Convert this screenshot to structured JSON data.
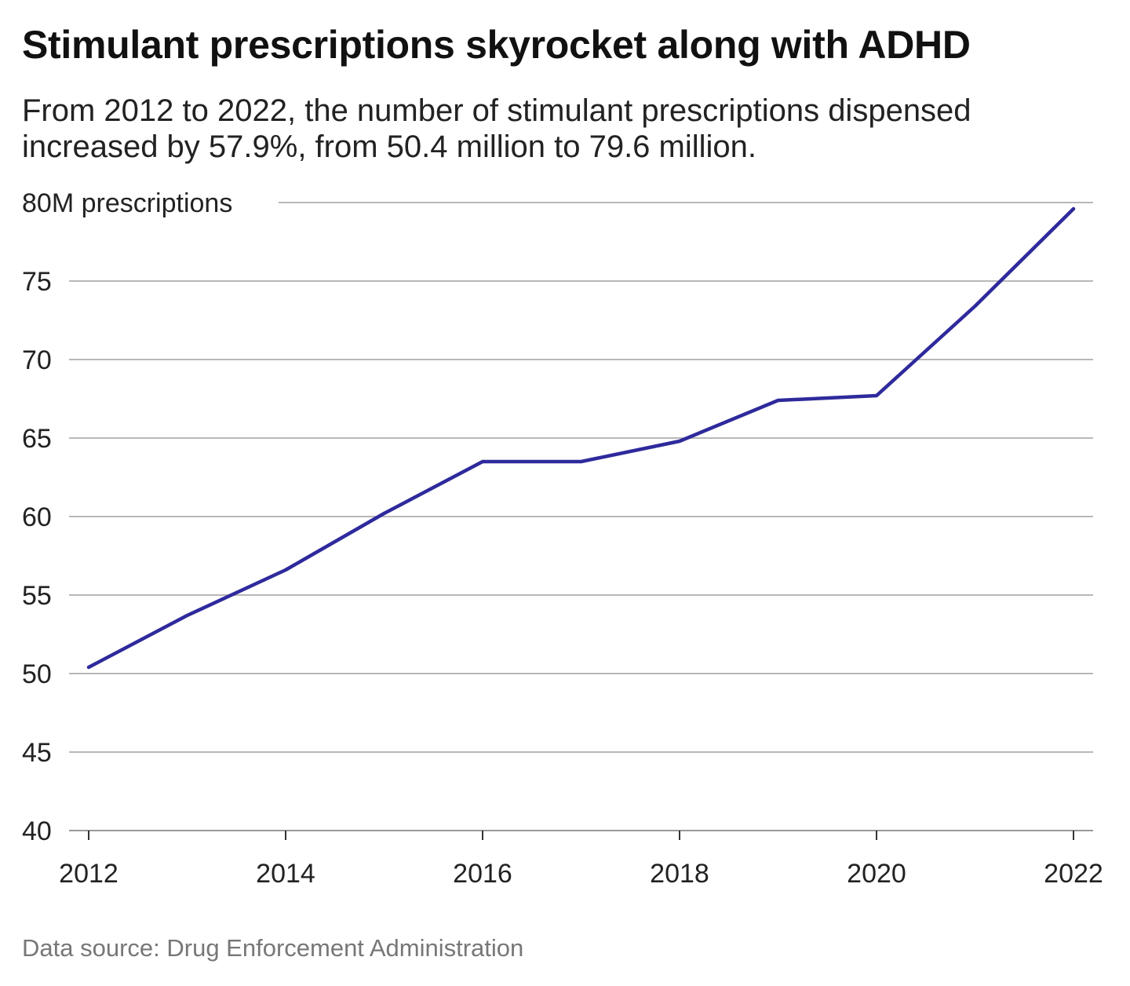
{
  "title": "Stimulant prescriptions skyrocket along with ADHD",
  "subtitle": "From 2012 to 2022, the number of stimulant prescriptions dispensed increased by 57.9%, from 50.4 million to 79.6 million.",
  "source": "Data source: Drug Enforcement Administration",
  "chart_data": {
    "type": "line",
    "title": "Stimulant prescriptions skyrocket along with ADHD",
    "ylabel": "",
    "xlabel": "",
    "ylim": [
      40,
      80
    ],
    "yticks": [
      40,
      45,
      50,
      55,
      60,
      65,
      70,
      75,
      80
    ],
    "ytick_labels": [
      "40",
      "45",
      "50",
      "55",
      "60",
      "65",
      "70",
      "75",
      "80M prescriptions"
    ],
    "xticks": [
      2012,
      2014,
      2016,
      2018,
      2020,
      2022
    ],
    "xtick_labels": [
      "2012",
      "2014",
      "2016",
      "2018",
      "2020",
      "2022"
    ],
    "x": [
      2012,
      2013,
      2014,
      2015,
      2016,
      2017,
      2018,
      2019,
      2020,
      2021,
      2022
    ],
    "series": [
      {
        "values": [
          50.4,
          53.7,
          56.6,
          60.2,
          63.5,
          63.5,
          64.8,
          67.4,
          67.7,
          73.4,
          79.6
        ],
        "color": "#2e2a9c"
      }
    ],
    "grid": "horizontal",
    "gridline_color": "#b8b8b8"
  }
}
